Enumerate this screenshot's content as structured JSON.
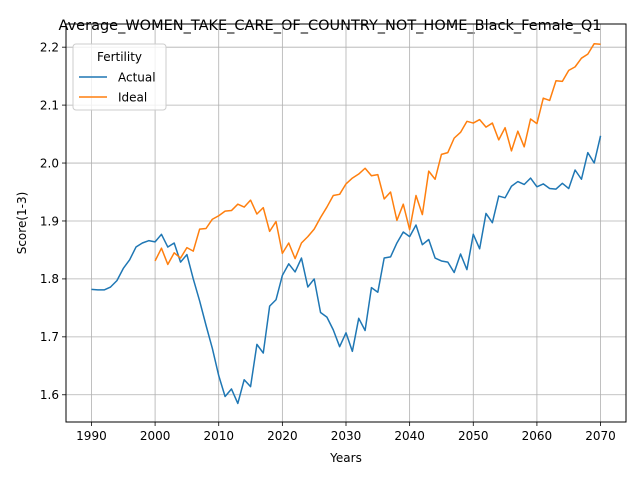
{
  "chart_data": {
    "type": "line",
    "title": "Average_WOMEN_TAKE_CARE_OF_COUNTRY_NOT_HOME_Black_Female_Q1",
    "xlabel": "Years",
    "ylabel": "Score(1-3)",
    "xlim": [
      1986,
      2074
    ],
    "ylim": [
      1.553,
      2.24
    ],
    "xticks": [
      1990,
      2000,
      2010,
      2020,
      2030,
      2040,
      2050,
      2060,
      2070
    ],
    "xtick_labels": [
      "1990",
      "2000",
      "2010",
      "2020",
      "2030",
      "2040",
      "2050",
      "2060",
      "2070"
    ],
    "yticks": [
      1.6,
      1.7,
      1.8,
      1.9,
      2.0,
      2.1,
      2.2
    ],
    "ytick_labels": [
      "1.6",
      "1.7",
      "1.8",
      "1.9",
      "2.0",
      "2.1",
      "2.2"
    ],
    "grid": true,
    "legend": {
      "title": "Fertility",
      "placement": "top-left"
    },
    "series": [
      {
        "name": "Actual",
        "color": "#1f77b4",
        "x": [
          1990,
          1991,
          1992,
          1993,
          1994,
          1995,
          1996,
          1997,
          1998,
          1999,
          2000,
          2001,
          2002,
          2003,
          2004,
          2005,
          2006,
          2007,
          2008,
          2009,
          2010,
          2011,
          2012,
          2013,
          2014,
          2015,
          2016,
          2017,
          2018,
          2019,
          2020,
          2021,
          2022,
          2023,
          2024,
          2025,
          2026,
          2027,
          2028,
          2029,
          2030,
          2031,
          2032,
          2033,
          2034,
          2035,
          2036,
          2037,
          2038,
          2039,
          2040,
          2041,
          2042,
          2043,
          2044,
          2045,
          2046,
          2047,
          2048,
          2049,
          2050,
          2051,
          2052,
          2053,
          2054,
          2055,
          2056,
          2057,
          2058,
          2059,
          2060,
          2061,
          2062,
          2063,
          2064,
          2065,
          2066,
          2067,
          2068,
          2069,
          2070
        ],
        "values": [
          1.782,
          1.781,
          1.781,
          1.786,
          1.797,
          1.818,
          1.833,
          1.855,
          1.862,
          1.866,
          1.864,
          1.877,
          1.855,
          1.862,
          1.829,
          1.842,
          1.8,
          1.762,
          1.72,
          1.68,
          1.633,
          1.597,
          1.61,
          1.585,
          1.626,
          1.614,
          1.687,
          1.672,
          1.753,
          1.764,
          1.806,
          1.826,
          1.812,
          1.836,
          1.786,
          1.8,
          1.742,
          1.734,
          1.712,
          1.683,
          1.707,
          1.675,
          1.732,
          1.711,
          1.785,
          1.777,
          1.836,
          1.838,
          1.862,
          1.881,
          1.873,
          1.893,
          1.859,
          1.868,
          1.836,
          1.831,
          1.829,
          1.811,
          1.843,
          1.816,
          1.877,
          1.852,
          1.913,
          1.897,
          1.943,
          1.94,
          1.96,
          1.968,
          1.963,
          1.974,
          1.959,
          1.964,
          1.956,
          1.955,
          1.965,
          1.956,
          1.988,
          1.972,
          2.018,
          2.0,
          2.047
        ]
      },
      {
        "name": "Ideal",
        "color": "#ff7f0e",
        "x": [
          2000,
          2001,
          2002,
          2003,
          2004,
          2005,
          2006,
          2007,
          2008,
          2009,
          2010,
          2011,
          2012,
          2013,
          2014,
          2015,
          2016,
          2017,
          2018,
          2019,
          2020,
          2021,
          2022,
          2023,
          2024,
          2025,
          2026,
          2027,
          2028,
          2029,
          2030,
          2031,
          2032,
          2033,
          2034,
          2035,
          2036,
          2037,
          2038,
          2039,
          2040,
          2041,
          2042,
          2043,
          2044,
          2045,
          2046,
          2047,
          2048,
          2049,
          2050,
          2051,
          2052,
          2053,
          2054,
          2055,
          2056,
          2057,
          2058,
          2059,
          2060,
          2061,
          2062,
          2063,
          2064,
          2065,
          2066,
          2067,
          2068,
          2069,
          2070
        ],
        "values": [
          1.831,
          1.853,
          1.825,
          1.845,
          1.836,
          1.854,
          1.848,
          1.886,
          1.887,
          1.903,
          1.909,
          1.917,
          1.918,
          1.929,
          1.924,
          1.936,
          1.912,
          1.923,
          1.882,
          1.899,
          1.844,
          1.862,
          1.835,
          1.862,
          1.873,
          1.886,
          1.906,
          1.924,
          1.944,
          1.946,
          1.964,
          1.974,
          1.981,
          1.991,
          1.978,
          1.98,
          1.938,
          1.95,
          1.901,
          1.929,
          1.885,
          1.944,
          1.911,
          1.986,
          1.972,
          2.015,
          2.018,
          2.043,
          2.053,
          2.072,
          2.069,
          2.075,
          2.062,
          2.069,
          2.04,
          2.061,
          2.021,
          2.055,
          2.028,
          2.076,
          2.068,
          2.112,
          2.108,
          2.142,
          2.141,
          2.16,
          2.166,
          2.181,
          2.188,
          2.206,
          2.205
        ]
      }
    ]
  }
}
